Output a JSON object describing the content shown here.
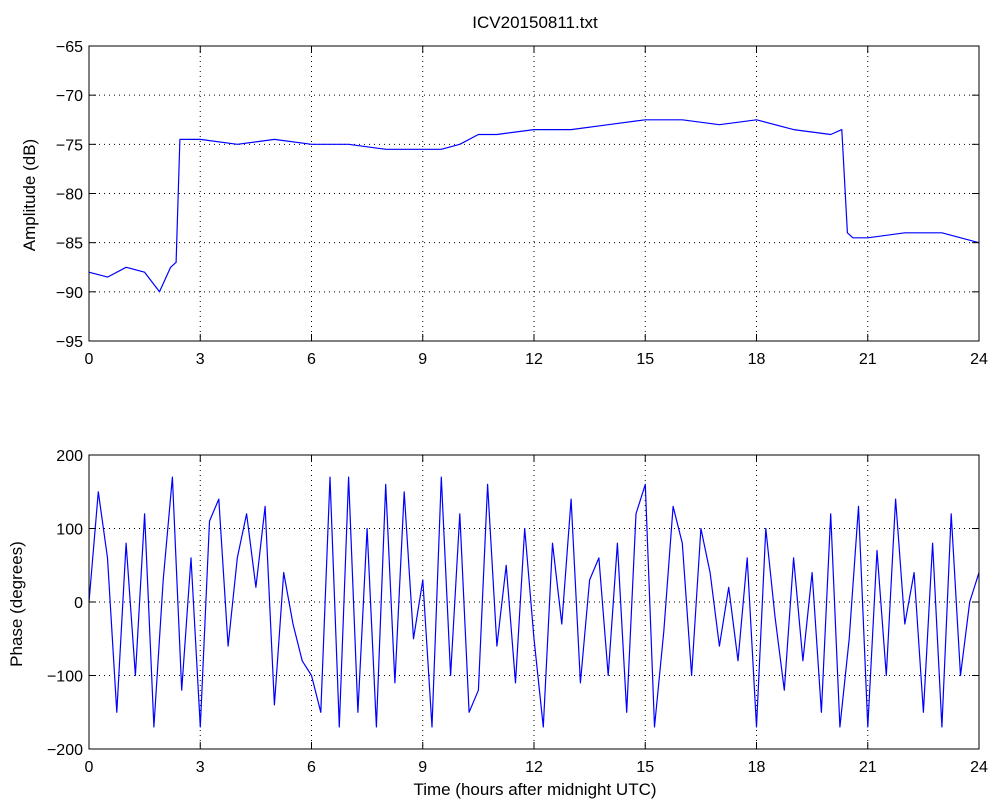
{
  "chart_data": [
    {
      "type": "line",
      "title": "ICV20150811.txt",
      "xlabel": "",
      "ylabel": "Amplitude (dB)",
      "xlim": [
        0,
        24
      ],
      "ylim": [
        -95,
        -65
      ],
      "xticks": [
        0,
        3,
        6,
        9,
        12,
        15,
        18,
        21,
        24
      ],
      "yticks": [
        -65,
        -70,
        -75,
        -80,
        -85,
        -90,
        -95
      ],
      "grid": true,
      "line_color": "#0000ff",
      "series": [
        {
          "x": [
            0,
            0.5,
            1.0,
            1.5,
            1.9,
            2.2,
            2.35,
            2.45,
            3,
            4,
            5,
            6,
            7,
            8,
            9,
            9.5,
            10,
            10.5,
            11,
            12,
            13,
            14,
            15,
            15.5,
            16,
            17,
            18,
            19,
            20,
            20.3,
            20.45,
            20.6,
            21,
            22,
            23,
            24
          ],
          "y": [
            -88,
            -88.5,
            -87.5,
            -88,
            -90,
            -87.5,
            -87,
            -74.5,
            -74.5,
            -75,
            -74.5,
            -75,
            -75,
            -75.5,
            -75.5,
            -75.5,
            -75,
            -74,
            -74,
            -73.5,
            -73.5,
            -73,
            -72.5,
            -72.5,
            -72.5,
            -73,
            -72.5,
            -73.5,
            -74,
            -73.5,
            -84,
            -84.5,
            -84.5,
            -84,
            -84,
            -85
          ]
        }
      ]
    },
    {
      "type": "line",
      "title": "",
      "xlabel": "Time (hours after midnight UTC)",
      "ylabel": "Phase (degrees)",
      "xlim": [
        0,
        24
      ],
      "ylim": [
        -200,
        200
      ],
      "xticks": [
        0,
        3,
        6,
        9,
        12,
        15,
        18,
        21,
        24
      ],
      "yticks": [
        200,
        100,
        0,
        -100,
        -200
      ],
      "grid": true,
      "line_color": "#0000ff",
      "series": [
        {
          "x": [
            0,
            0.25,
            0.5,
            0.75,
            1.0,
            1.25,
            1.5,
            1.75,
            2.0,
            2.25,
            2.5,
            2.75,
            3.0,
            3.25,
            3.5,
            3.75,
            4.0,
            4.25,
            4.5,
            4.75,
            5.0,
            5.25,
            5.5,
            5.75,
            6.0,
            6.25,
            6.5,
            6.75,
            7.0,
            7.25,
            7.5,
            7.75,
            8.0,
            8.25,
            8.5,
            8.75,
            9.0,
            9.25,
            9.5,
            9.75,
            10.0,
            10.25,
            10.5,
            10.75,
            11.0,
            11.25,
            11.5,
            11.75,
            12.0,
            12.25,
            12.5,
            12.75,
            13.0,
            13.25,
            13.5,
            13.75,
            14.0,
            14.25,
            14.5,
            14.75,
            15.0,
            15.25,
            15.5,
            15.75,
            16.0,
            16.25,
            16.5,
            16.75,
            17.0,
            17.25,
            17.5,
            17.75,
            18.0,
            18.25,
            18.5,
            18.75,
            19.0,
            19.25,
            19.5,
            19.75,
            20.0,
            20.25,
            20.5,
            20.75,
            21.0,
            21.25,
            21.5,
            21.75,
            22.0,
            22.25,
            22.5,
            22.75,
            23.0,
            23.25,
            23.5,
            23.75,
            24.0
          ],
          "y": [
            0,
            150,
            60,
            -150,
            80,
            -100,
            120,
            -170,
            30,
            170,
            -120,
            60,
            -170,
            110,
            140,
            -60,
            60,
            120,
            20,
            130,
            -140,
            40,
            -30,
            -80,
            -100,
            -150,
            170,
            -170,
            170,
            -150,
            100,
            -170,
            160,
            -110,
            150,
            -50,
            30,
            -170,
            170,
            -100,
            120,
            -150,
            -120,
            160,
            -60,
            50,
            -110,
            100,
            -50,
            -170,
            80,
            -30,
            140,
            -110,
            30,
            60,
            -100,
            80,
            -150,
            120,
            160,
            -170,
            -40,
            130,
            80,
            -100,
            100,
            40,
            -60,
            20,
            -80,
            60,
            -170,
            100,
            -20,
            -120,
            60,
            -80,
            40,
            -150,
            120,
            -170,
            -50,
            130,
            -170,
            70,
            -100,
            140,
            -30,
            40,
            -150,
            80,
            -170,
            120,
            -100,
            0,
            40
          ]
        }
      ]
    }
  ]
}
